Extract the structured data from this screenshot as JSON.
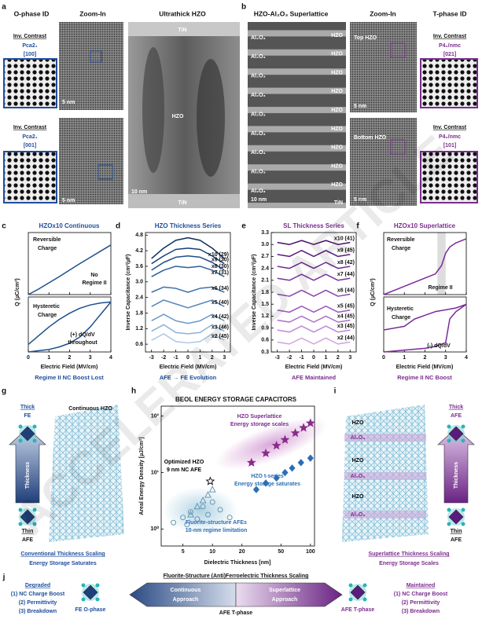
{
  "panel_a": {
    "label": "a",
    "headers": [
      "O-phase ID",
      "Zoom-In",
      "Ultrathick HZO"
    ],
    "ids": [
      {
        "contrast": "Inv. Contrast",
        "phase": "Pca2₁",
        "zone": "[100]"
      },
      {
        "contrast": "Inv. Contrast",
        "phase": "Pca2₁",
        "zone": "[001]"
      }
    ],
    "scale_bars": [
      "5 nm",
      "5 nm",
      "10 nm"
    ],
    "layers": [
      "TiN",
      "HZO",
      "TiN"
    ]
  },
  "panel_b": {
    "label": "b",
    "headers": [
      "HZO-Al₂O₃ Superlattice",
      "Zoom-In",
      "T-phase ID"
    ],
    "oxide_layers": [
      "Al₂O₃",
      "Al₂O₃",
      "Al₂O₃",
      "Al₂O₃",
      "Al₂O₃",
      "Al₂O₃",
      "Al₂O₃",
      "Al₂O₃",
      "Al₂O₃"
    ],
    "hzo_layers": [
      "HZO",
      "HZO",
      "HZO",
      "HZO",
      "HZO",
      "HZO",
      "HZO",
      "HZO",
      "HZO"
    ],
    "electrode": "TiN",
    "zoom_labels": [
      "Top HZO",
      "Bottom HZO"
    ],
    "scale_bars": [
      "10 nm",
      "5 nm",
      "5 nm"
    ],
    "ids": [
      {
        "contrast": "Inv. Contrast",
        "phase": "P4₂/nmc",
        "zone": "[021]"
      },
      {
        "contrast": "Inv. Contrast",
        "phase": "P4₂/nmc",
        "zone": "[101]"
      }
    ]
  },
  "panel_c": {
    "label": "c",
    "title": "HZOx10 Continuous",
    "xlabel": "Electric Field (MV/cm)",
    "ylabel": "Q (µC/cm²)",
    "caption": "Regime II NC Boost Lost",
    "xlim": [
      0,
      4
    ],
    "xticks": [
      0,
      1,
      2,
      3,
      4
    ],
    "upper": {
      "notes": [
        "Reversible",
        "Charge",
        "No",
        "Regime II"
      ],
      "ylim": [
        0,
        20
      ],
      "series": [
        {
          "color": "#1d4f8c",
          "x": [
            0,
            0.5,
            1,
            1.5,
            2,
            2.5,
            3,
            3.5,
            4
          ],
          "values": [
            0,
            1.8,
            3.8,
            5.8,
            7.9,
            10,
            12,
            14,
            16
          ]
        }
      ]
    },
    "lower": {
      "notes": [
        "Hysteretic",
        "Charge",
        "(+) dQ/dV",
        "throughout"
      ],
      "ylim": [
        0,
        22
      ],
      "series": [
        {
          "color": "#1d4f8c",
          "x": [
            0,
            0.5,
            1,
            1.5,
            2,
            2.5,
            3,
            3.5,
            4
          ],
          "values": [
            3,
            6.5,
            10,
            13,
            15.5,
            17.5,
            18.8,
            19.6,
            20
          ]
        },
        {
          "color": "#1d4f8c",
          "x": [
            0,
            0.5,
            1,
            1.5,
            2,
            2.5,
            3,
            3.5,
            4
          ],
          "values": [
            0,
            0.5,
            1,
            2,
            3.5,
            6,
            10,
            15,
            20
          ]
        }
      ]
    }
  },
  "panel_d": {
    "label": "d",
    "title": "HZO Thickness Series",
    "xlabel": "Electric Field (MV/cm)",
    "ylabel": "Inverse Capacitance (cm²/µF)",
    "caption": "AFE → FE Evolution",
    "xlim": [
      -3.5,
      3.5
    ],
    "xticks": [
      -3,
      -2,
      -1,
      0,
      1,
      2,
      3
    ],
    "ylim": [
      0.3,
      4.9
    ],
    "yticks": [
      0.6,
      1.2,
      1.8,
      2.4,
      {
        "value": 3,
        "label": "3.0"
      },
      3.6,
      4.2,
      4.8
    ],
    "x": [
      -3,
      -2,
      -1,
      0,
      1,
      2,
      3
    ],
    "series": [
      {
        "name": "x10 (29)",
        "color": "#0d2b5c",
        "values": [
          3.9,
          4.3,
          4.6,
          4.7,
          4.6,
          4.3,
          3.9
        ]
      },
      {
        "name": "x9 (30)",
        "color": "#163d75",
        "values": [
          3.7,
          4.0,
          4.25,
          4.3,
          4.25,
          4.0,
          3.7
        ]
      },
      {
        "name": "x8 (30)",
        "color": "#1f4e8c",
        "values": [
          3.45,
          3.75,
          3.95,
          4.0,
          3.95,
          3.75,
          3.45
        ]
      },
      {
        "name": "x7 (31)",
        "color": "#2b5f9e",
        "values": [
          3.2,
          3.45,
          3.6,
          3.55,
          3.6,
          3.45,
          3.2
        ]
      },
      {
        "name": "x6 (34)",
        "color": "#3d72ad",
        "values": [
          2.6,
          2.8,
          2.75,
          2.6,
          2.75,
          2.8,
          2.6
        ]
      },
      {
        "name": "x5 (40)",
        "color": "#5386bc",
        "values": [
          2.05,
          2.3,
          2.15,
          2.0,
          2.15,
          2.3,
          2.05
        ]
      },
      {
        "name": "x4 (42)",
        "color": "#6d9bca",
        "values": [
          1.5,
          1.75,
          1.5,
          1.4,
          1.5,
          1.75,
          1.5
        ]
      },
      {
        "name": "x3 (46)",
        "color": "#89b1d8",
        "values": [
          1.1,
          1.35,
          1.05,
          1.0,
          1.05,
          1.35,
          1.1
        ]
      },
      {
        "name": "x2 (45)",
        "color": "#a9c6e6",
        "values": [
          0.75,
          1.0,
          0.7,
          0.65,
          0.7,
          1.0,
          0.75
        ]
      }
    ]
  },
  "panel_e": {
    "label": "e",
    "title": "SL Thickness Series",
    "xlabel": "Electric Field (MV/cm)",
    "ylabel": "Inverse Capacitance (cm²/µF)",
    "caption": "AFE Maintained",
    "xlim": [
      -3.5,
      3.5
    ],
    "xticks": [
      -3,
      -2,
      -1,
      0,
      1,
      2,
      3
    ],
    "ylim": [
      0.3,
      3.3
    ],
    "yticks": [
      0.3,
      0.6,
      0.9,
      1.2,
      1.5,
      1.8,
      2.1,
      2.4,
      2.7,
      {
        "value": 3,
        "label": "3.0"
      },
      3.3
    ],
    "x": [
      -3,
      -2,
      -1,
      0,
      1,
      2,
      3
    ],
    "series": [
      {
        "name": "x10 (41)",
        "color": "#4a0f6b",
        "values": [
          3.05,
          3.0,
          3.1,
          3.0,
          3.1,
          3.0,
          3.05
        ]
      },
      {
        "name": "x9 (45)",
        "color": "#5a1a7e",
        "values": [
          2.75,
          2.7,
          2.85,
          2.7,
          2.85,
          2.7,
          2.75
        ]
      },
      {
        "name": "x8 (42)",
        "color": "#6b2690",
        "values": [
          2.45,
          2.4,
          2.55,
          2.4,
          2.55,
          2.4,
          2.45
        ]
      },
      {
        "name": "x7 (44)",
        "color": "#7b33a0",
        "values": [
          2.15,
          2.1,
          2.25,
          2.1,
          2.25,
          2.1,
          2.15
        ]
      },
      {
        "name": "x6 (44)",
        "color": "#8b44ae",
        "values": [
          1.75,
          1.7,
          1.85,
          1.7,
          1.85,
          1.7,
          1.75
        ]
      },
      {
        "name": "x5 (45)",
        "color": "#9b58bb",
        "values": [
          1.35,
          1.3,
          1.45,
          1.3,
          1.45,
          1.3,
          1.35
        ]
      },
      {
        "name": "x4 (45)",
        "color": "#ad6ec8",
        "values": [
          1.1,
          1.05,
          1.2,
          1.05,
          1.2,
          1.05,
          1.1
        ]
      },
      {
        "name": "x3 (45)",
        "color": "#bf87d5",
        "values": [
          0.85,
          0.8,
          0.95,
          0.8,
          0.95,
          0.8,
          0.85
        ]
      },
      {
        "name": "x2 (44)",
        "color": "#d1a2e1",
        "values": [
          0.55,
          0.5,
          0.65,
          0.5,
          0.65,
          0.5,
          0.55
        ]
      }
    ]
  },
  "panel_f": {
    "label": "f",
    "title": "HZOx10 Superlattice",
    "xlabel": "Electric Field (MV/cm)",
    "ylabel": "Q (µC/cm²)",
    "caption": "Regime II NC Boost",
    "xlim": [
      0,
      4
    ],
    "xticks": [
      0,
      1,
      2,
      3,
      4
    ],
    "upper": {
      "notes": [
        "Reversible",
        "Charge",
        "Regime II"
      ],
      "ylim": [
        0,
        30
      ],
      "highlight": [
        2.6,
        3.0
      ],
      "series": [
        {
          "color": "#7b2a9a",
          "x": [
            0,
            0.5,
            1,
            1.5,
            2,
            2.5,
            2.8,
            3,
            3.2,
            3.5,
            4
          ],
          "values": [
            0,
            2,
            4,
            6,
            8,
            10,
            14,
            20,
            23,
            25,
            27
          ]
        }
      ]
    },
    "lower": {
      "notes": [
        "Hysteretic",
        "Charge",
        "(-) dQ/dV"
      ],
      "ylim": [
        0,
        30
      ],
      "series": [
        {
          "color": "#7b2a9a",
          "x": [
            0,
            1,
            1.5,
            2,
            2.5,
            3,
            3.5,
            4
          ],
          "values": [
            12,
            14,
            18,
            20,
            22,
            23,
            24,
            26
          ]
        },
        {
          "color": "#7b2a9a",
          "x": [
            0,
            1,
            2,
            2.5,
            3,
            3.2,
            3.5,
            4
          ],
          "values": [
            0,
            1,
            2,
            3,
            5,
            18,
            22,
            26
          ]
        }
      ]
    }
  },
  "panel_g": {
    "label": "g",
    "top": [
      "Thick",
      "FE"
    ],
    "arrow": "Thickness",
    "bottom": [
      "Thin",
      "AFE"
    ],
    "structure": "Continuous HZO",
    "captions": [
      "Conventional Thickness Scaling",
      "Energy Storage Saturates"
    ]
  },
  "panel_h": {
    "label": "h",
    "title": "BEOL ENERGY STORAGE CAPACITORS",
    "xlabel": "Dielectric Thickness [nm]",
    "ylabel": "Areal Energy Density [µJ/cm²]",
    "log": true,
    "xlim": [
      3,
      110
    ],
    "ylim": [
      0.5,
      150
    ],
    "xticks": [
      5,
      10,
      20,
      50,
      100
    ],
    "yticks": [
      {
        "value": 1,
        "label": "10⁰"
      },
      {
        "value": 10,
        "label": "10¹"
      },
      {
        "value": 100,
        "label": "10²"
      }
    ],
    "series": [
      {
        "name": "HZO Superlattice",
        "note": "Energy storage scales",
        "color": "#8b2b8b",
        "marker": "star",
        "x": [
          25,
          35,
          45,
          55,
          70,
          85,
          100
        ],
        "values": [
          15,
          22,
          30,
          38,
          50,
          62,
          75
        ]
      },
      {
        "name": "HZO t-series",
        "note": "Energy storage saturates",
        "color": "#2a6fb5",
        "marker": "diamond",
        "x": [
          28,
          35,
          45,
          55,
          65,
          80,
          100
        ],
        "values": [
          5,
          6.5,
          8,
          10,
          12,
          15,
          18
        ]
      },
      {
        "name": "Fluorite-structure AFEs",
        "note": "10-nm regime limitation",
        "color": "#5b8fb0",
        "marker": "circle",
        "open": true,
        "x": [
          4,
          5,
          5.5,
          6,
          7,
          8,
          9,
          10,
          12,
          15
        ],
        "values": [
          1.3,
          1.6,
          1.2,
          2,
          1.5,
          2.5,
          1.8,
          3,
          2.2,
          1.6
        ]
      },
      {
        "color": "#5b8fb0",
        "marker": "triangle",
        "open": true,
        "x": [
          6,
          7,
          8,
          9,
          10
        ],
        "values": [
          1.8,
          2.5,
          3.2,
          4,
          5
        ]
      },
      {
        "name": "Optimized HZO",
        "note": "9 nm NC AFE",
        "color": "#000000",
        "marker": "star",
        "open": true,
        "x": [
          9.5
        ],
        "values": [
          7
        ]
      }
    ]
  },
  "panel_i": {
    "label": "i",
    "top": [
      "Thick",
      "AFE"
    ],
    "arrow": "Thickness",
    "bottom": [
      "Thin",
      "AFE"
    ],
    "layers": [
      "HZO",
      "Al₂O₃",
      "HZO",
      "Al₂O₃",
      "HZO",
      "Al₂O₃"
    ],
    "captions": [
      "Superlattice Thickness Scaling",
      "Energy Storage Scales"
    ]
  },
  "panel_j": {
    "label": "j",
    "title": "Fluorite-Structure (Anti)Ferroelectric Thickness Scaling",
    "left": {
      "status": "Degraded",
      "items": [
        "(1) NC Charge Boost",
        "(2) Permittivity",
        "(3) Breakdown"
      ]
    },
    "right": {
      "status": "Maintained",
      "items": [
        "(1) NC Charge Boost",
        "(2) Permittivity",
        "(3) Breakdown"
      ]
    },
    "approaches": [
      [
        "Continuous",
        "Approach"
      ],
      [
        "Superlattice",
        "Approach"
      ]
    ],
    "phases": [
      "FE O-phase",
      "AFE T-phase",
      "AFE T-phase"
    ]
  },
  "watermark": "ACCELERATED ARTICLE"
}
